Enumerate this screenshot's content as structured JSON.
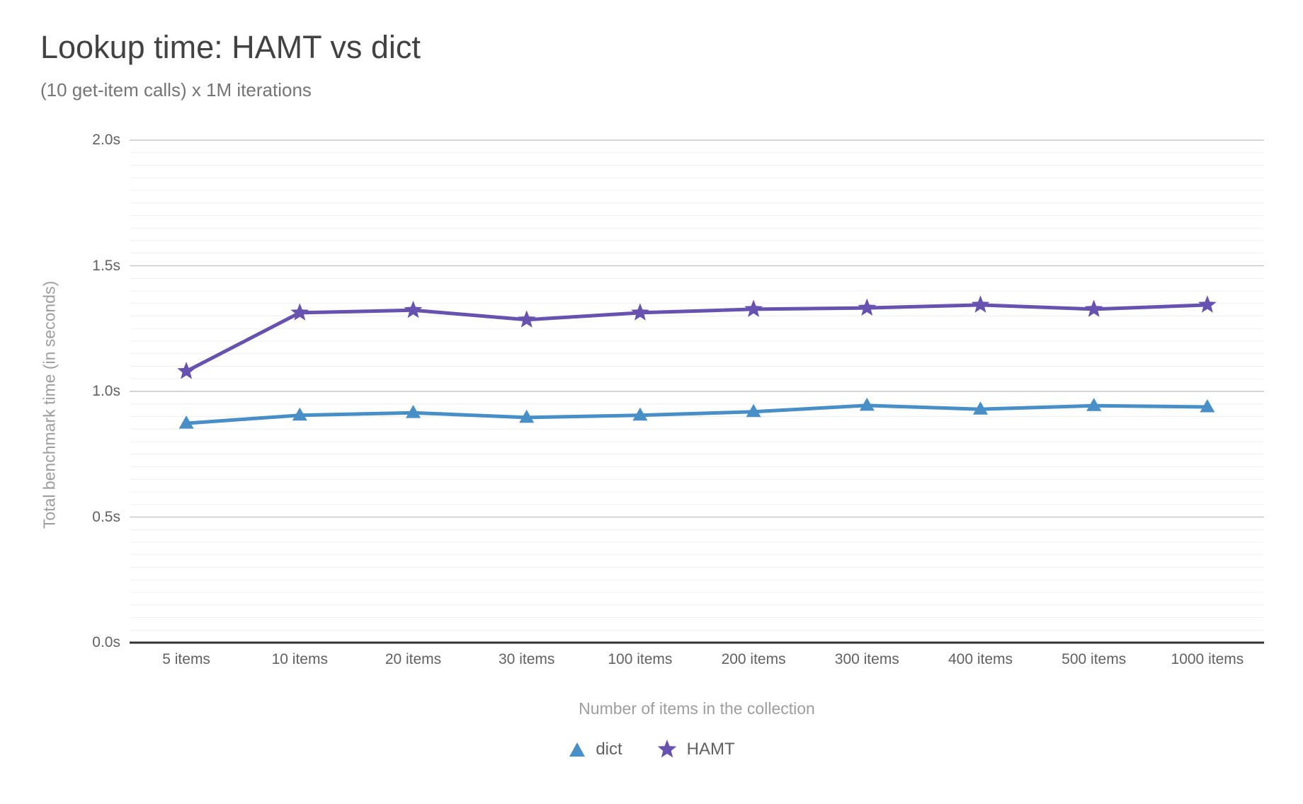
{
  "header": {
    "title": "Lookup time: HAMT vs dict",
    "subtitle": "(10 get-item calls) x 1M iterations"
  },
  "chart_data": {
    "type": "line",
    "title": "Lookup time: HAMT vs dict",
    "subtitle": "(10 get-item calls) x 1M iterations",
    "xlabel": "Number of items in the collection",
    "ylabel": "Total benchmark time (in seconds)",
    "categories": [
      "5 items",
      "10 items",
      "20 items",
      "30 items",
      "100 items",
      "200 items",
      "300 items",
      "400 items",
      "500 items",
      "1000 items"
    ],
    "series": [
      {
        "name": "dict",
        "marker": "triangle",
        "color": "#478fc6",
        "values": [
          0.873,
          0.905,
          0.915,
          0.896,
          0.905,
          0.919,
          0.944,
          0.929,
          0.943,
          0.938
        ]
      },
      {
        "name": "HAMT",
        "marker": "star",
        "color": "#6852af",
        "values": [
          1.08,
          1.313,
          1.323,
          1.285,
          1.313,
          1.327,
          1.332,
          1.344,
          1.327,
          1.344
        ]
      }
    ],
    "ylim": [
      0,
      2.0
    ],
    "y_ticks": [
      {
        "value": 0.0,
        "label": "0.0s"
      },
      {
        "value": 0.5,
        "label": "0.5s"
      },
      {
        "value": 1.0,
        "label": "1.0s"
      },
      {
        "value": 1.5,
        "label": "1.5s"
      },
      {
        "value": 2.0,
        "label": "2.0s"
      }
    ],
    "y_minor_step": 0.05,
    "grid": {
      "major_color": "#c9c9c9",
      "minor_color": "#f0f0f0",
      "baseline_color": "#333333",
      "vertical_gridlines": false
    },
    "legend_position": "bottom",
    "colors": {
      "title": "#424242",
      "subtitle": "#757575",
      "tick_label": "#616161",
      "axis_title": "#9e9e9e"
    }
  }
}
